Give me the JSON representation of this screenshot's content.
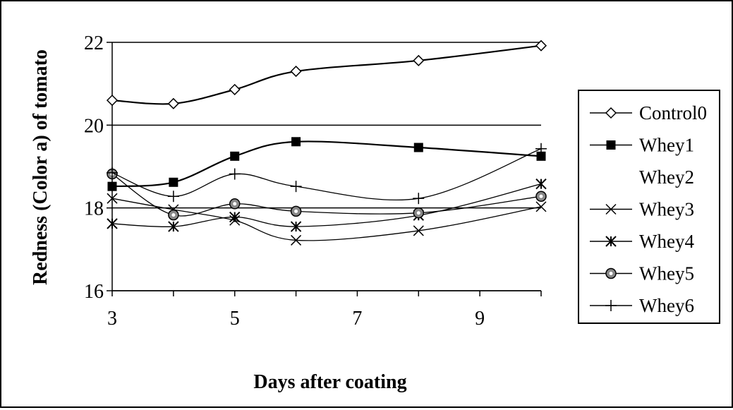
{
  "chart_data": {
    "type": "line",
    "xlabel": "Days after coating",
    "ylabel": "Redness (Color a) of tomato",
    "xlim": [
      3,
      10
    ],
    "ylim": [
      16,
      22
    ],
    "xticks": [
      3,
      5,
      7,
      9
    ],
    "yticks": [
      16,
      18,
      20,
      22
    ],
    "x": [
      3,
      4,
      5,
      6,
      8,
      10
    ],
    "legend_position": "right",
    "grid": "horizontal",
    "series": [
      {
        "name": "Control0",
        "marker": "diamond",
        "values": [
          20.6,
          20.52,
          20.86,
          21.3,
          21.56,
          21.92
        ]
      },
      {
        "name": "Whey1",
        "marker": "square",
        "values": [
          18.52,
          18.62,
          19.25,
          19.6,
          19.46,
          19.25
        ]
      },
      {
        "name": "Whey2",
        "marker": "none",
        "values": [
          null,
          null,
          null,
          null,
          null,
          null
        ]
      },
      {
        "name": "Whey3",
        "marker": "x",
        "values": [
          18.23,
          17.96,
          17.7,
          17.22,
          17.45,
          18.03
        ]
      },
      {
        "name": "Whey4",
        "marker": "star",
        "values": [
          17.62,
          17.55,
          17.78,
          17.55,
          17.82,
          18.58
        ]
      },
      {
        "name": "Whey5",
        "marker": "circle",
        "values": [
          18.82,
          17.83,
          18.1,
          17.92,
          17.88,
          18.28
        ]
      },
      {
        "name": "Whey6",
        "marker": "plus",
        "values": [
          18.85,
          18.28,
          18.82,
          18.52,
          18.23,
          19.43
        ]
      }
    ]
  }
}
